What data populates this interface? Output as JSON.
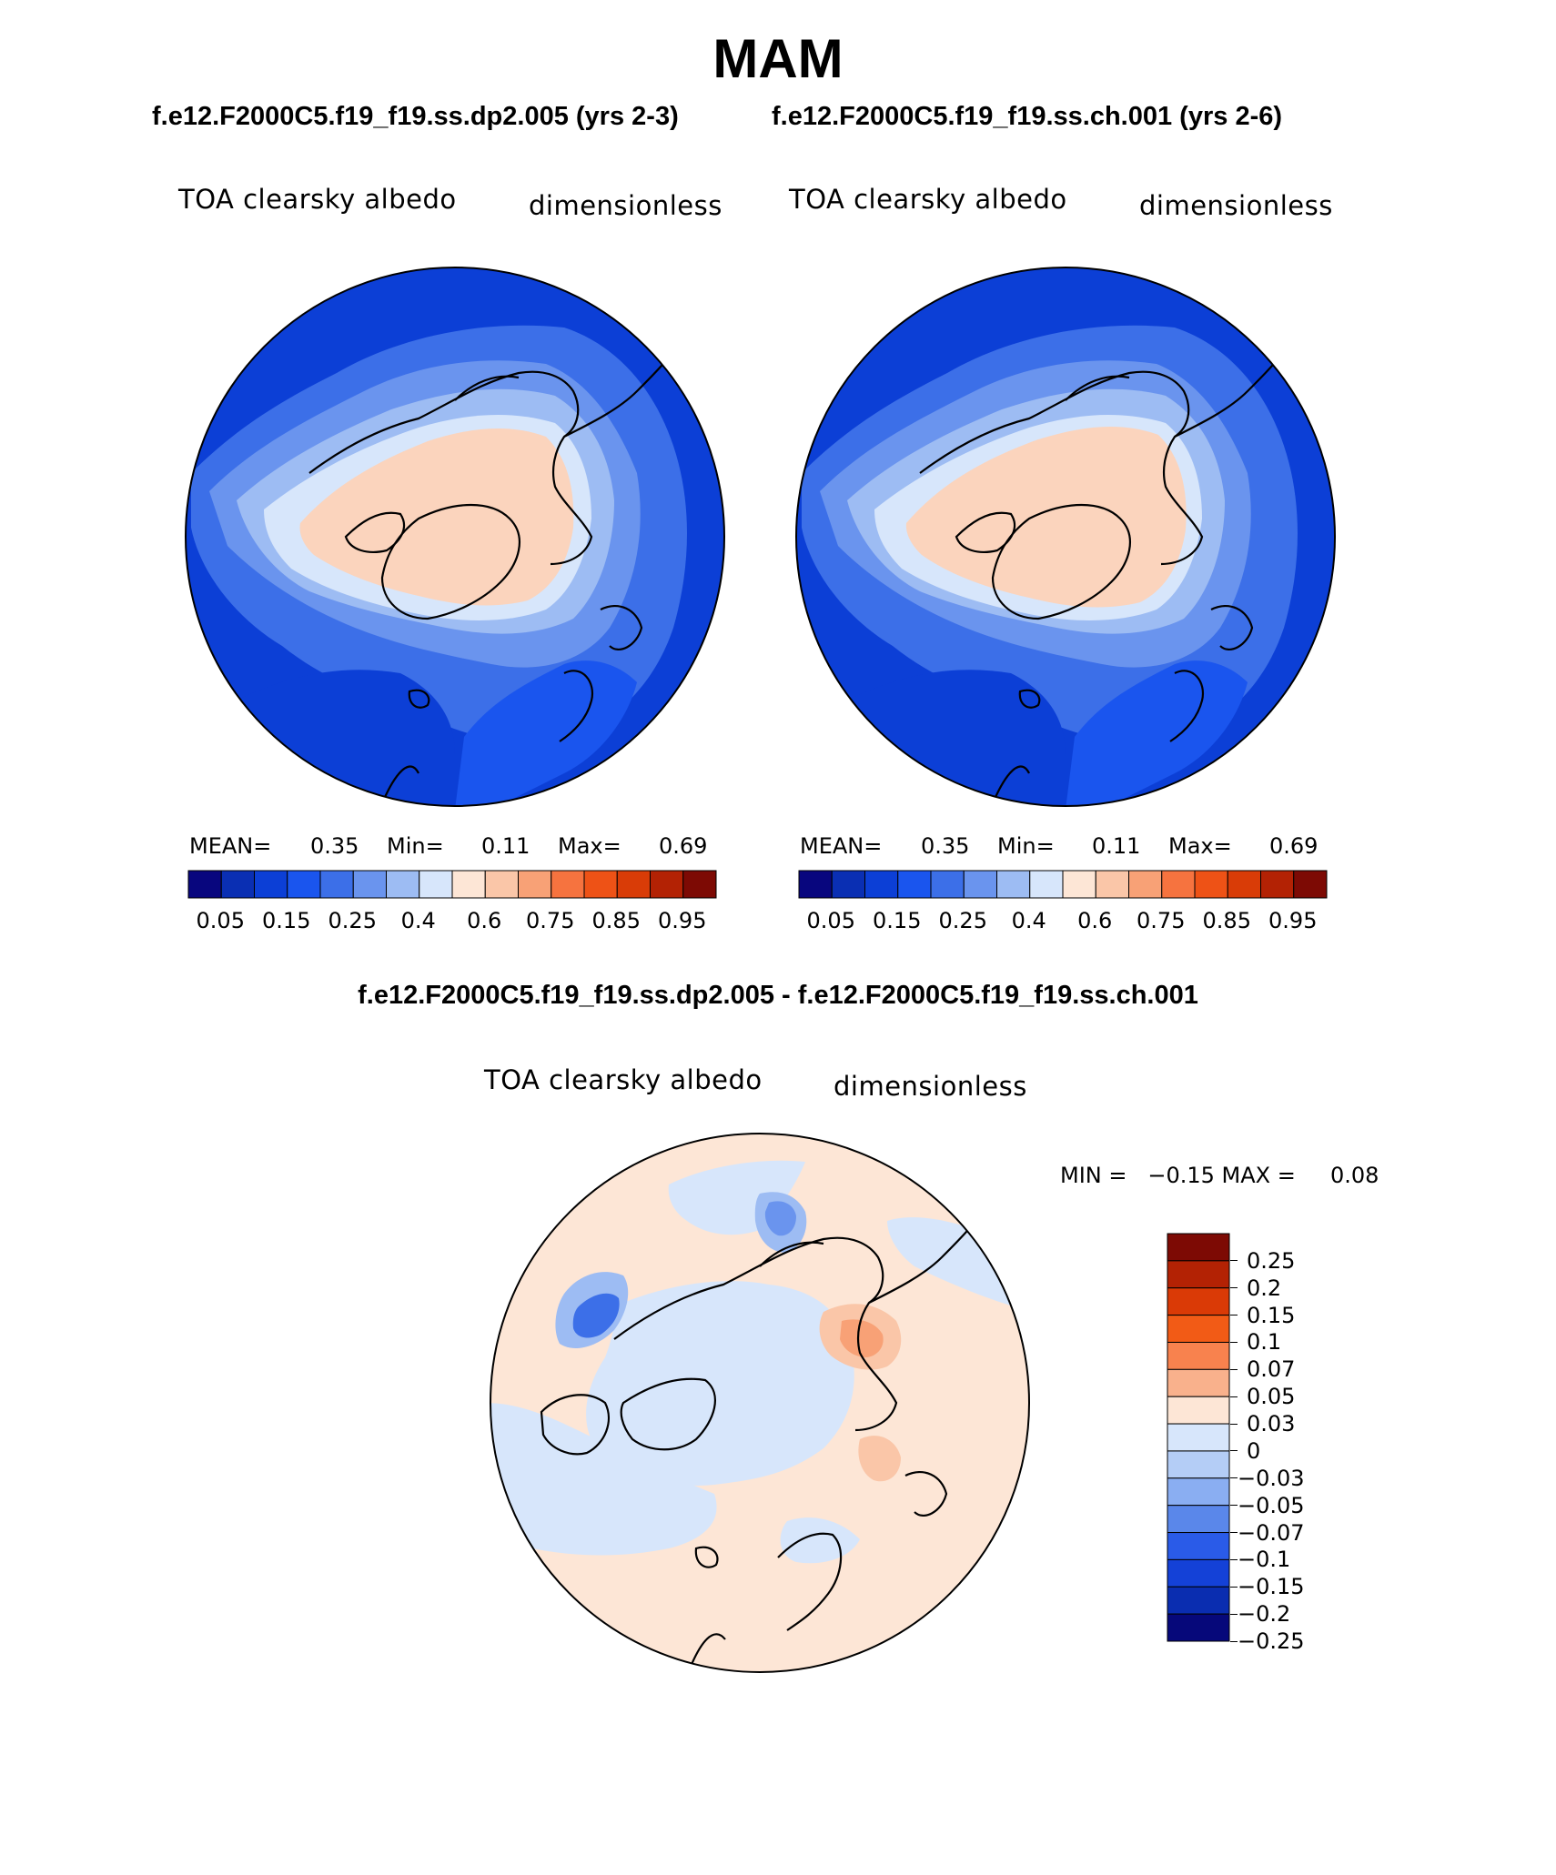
{
  "title": "MAM",
  "cases": [
    {
      "name": "f.e12.F2000C5.f19_f19.ss.dp2.005 (yrs 2-3)",
      "variable": "TOA clearsky albedo",
      "units": "dimensionless",
      "stats": {
        "mean_label": "MEAN=",
        "mean": "0.35",
        "min_label": "Min=",
        "min": "0.11",
        "max_label": "Max=",
        "max": "0.69"
      }
    },
    {
      "name": "f.e12.F2000C5.f19_f19.ss.ch.001 (yrs 2-6)",
      "variable": "TOA clearsky albedo",
      "units": "dimensionless",
      "stats": {
        "mean_label": "MEAN=",
        "mean": "0.35",
        "min_label": "Min=",
        "min": "0.11",
        "max_label": "Max=",
        "max": "0.69"
      }
    }
  ],
  "diff": {
    "title": "f.e12.F2000C5.f19_f19.ss.dp2.005 - f.e12.F2000C5.f19_f19.ss.ch.001",
    "variable": "TOA clearsky albedo",
    "units": "dimensionless",
    "minmax_text": "MIN =   −0.15 MAX =     0.08"
  },
  "colorbar_main": {
    "colors": [
      "#08067e",
      "#0a2fb3",
      "#0c3fd6",
      "#1a55ee",
      "#3c6fe8",
      "#6a94ee",
      "#9dbcf3",
      "#d7e6fb",
      "#fde6d6",
      "#fac6a8",
      "#f8a176",
      "#f6733f",
      "#ee5216",
      "#d93c07",
      "#b32204",
      "#7d0a04"
    ],
    "labels": [
      "0.05",
      "0.15",
      "0.25",
      "0.4",
      "0.6",
      "0.75",
      "0.85",
      "0.95"
    ]
  },
  "colorbar_diff": {
    "colors": [
      "#7d0a04",
      "#b32204",
      "#da3a06",
      "#f25b16",
      "#f8824e",
      "#f9b18c",
      "#fde6d6",
      "#d7e6fb",
      "#b4cdf6",
      "#8aaef2",
      "#5a87ea",
      "#2a5be8",
      "#1441d7",
      "#0a2db0",
      "#06087a"
    ],
    "labels": [
      "0.25",
      "0.2",
      "0.15",
      "0.1",
      "0.07",
      "0.05",
      "0.03",
      "0",
      "−0.03",
      "−0.05",
      "−0.07",
      "−0.1",
      "−0.15",
      "−0.2",
      "−0.25"
    ]
  }
}
